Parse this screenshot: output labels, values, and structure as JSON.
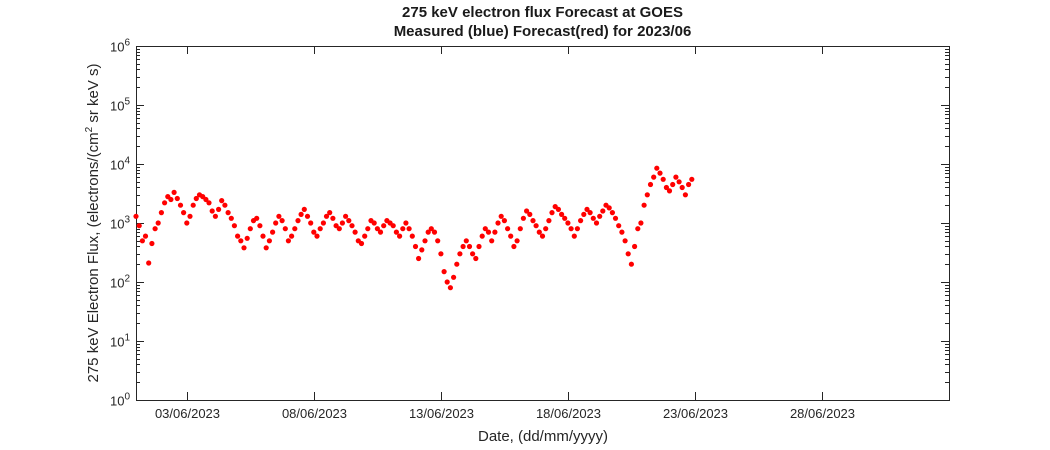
{
  "chart_data": {
    "type": "scatter",
    "title": "275 keV electron flux Forecast at GOES",
    "subtitle": "Measured (blue) Forecast(red) for 2023/06",
    "xlabel": "Date, (dd/mm/yyyy)",
    "ylabel": {
      "prefix": "275 keV Electron Flux, (electrons/(cm",
      "superscript": "2",
      "suffix": " sr keV s)"
    },
    "y_scale": "log",
    "ylim": [
      1,
      1000000
    ],
    "y_ticks": [
      {
        "value": 1,
        "base": "10",
        "exp": "0"
      },
      {
        "value": 10,
        "base": "10",
        "exp": "1"
      },
      {
        "value": 100,
        "base": "10",
        "exp": "2"
      },
      {
        "value": 1000,
        "base": "10",
        "exp": "3"
      },
      {
        "value": 10000,
        "base": "10",
        "exp": "4"
      },
      {
        "value": 100000,
        "base": "10",
        "exp": "5"
      },
      {
        "value": 1000000,
        "base": "10",
        "exp": "6"
      }
    ],
    "xlim": [
      "2023-06-01T00:00",
      "2023-07-03T00:00"
    ],
    "x_ticks": [
      {
        "date": "2023-06-03",
        "label": "03/06/2023"
      },
      {
        "date": "2023-06-08",
        "label": "08/06/2023"
      },
      {
        "date": "2023-06-13",
        "label": "13/06/2023"
      },
      {
        "date": "2023-06-18",
        "label": "18/06/2023"
      },
      {
        "date": "2023-06-23",
        "label": "23/06/2023"
      },
      {
        "date": "2023-06-28",
        "label": "28/06/2023"
      }
    ],
    "grid": false,
    "series": [
      {
        "color": "#ff0000",
        "points": [
          [
            "2023-06-01T00:00",
            1300
          ],
          [
            "2023-06-01T03:00",
            900
          ],
          [
            "2023-06-01T06:00",
            500
          ],
          [
            "2023-06-01T09:00",
            600
          ],
          [
            "2023-06-01T12:00",
            210
          ],
          [
            "2023-06-01T15:00",
            450
          ],
          [
            "2023-06-01T18:00",
            800
          ],
          [
            "2023-06-01T21:00",
            1000
          ],
          [
            "2023-06-02T00:00",
            1500
          ],
          [
            "2023-06-02T03:00",
            2200
          ],
          [
            "2023-06-02T06:00",
            2800
          ],
          [
            "2023-06-02T09:00",
            2500
          ],
          [
            "2023-06-02T12:00",
            3300
          ],
          [
            "2023-06-02T15:00",
            2600
          ],
          [
            "2023-06-02T18:00",
            2000
          ],
          [
            "2023-06-02T21:00",
            1500
          ],
          [
            "2023-06-03T00:00",
            1000
          ],
          [
            "2023-06-03T03:00",
            1300
          ],
          [
            "2023-06-03T06:00",
            2000
          ],
          [
            "2023-06-03T09:00",
            2600
          ],
          [
            "2023-06-03T12:00",
            3000
          ],
          [
            "2023-06-03T15:00",
            2800
          ],
          [
            "2023-06-03T18:00",
            2500
          ],
          [
            "2023-06-03T21:00",
            2200
          ],
          [
            "2023-06-04T00:00",
            1600
          ],
          [
            "2023-06-04T03:00",
            1300
          ],
          [
            "2023-06-04T06:00",
            1700
          ],
          [
            "2023-06-04T09:00",
            2400
          ],
          [
            "2023-06-04T12:00",
            2000
          ],
          [
            "2023-06-04T15:00",
            1500
          ],
          [
            "2023-06-04T18:00",
            1200
          ],
          [
            "2023-06-04T21:00",
            900
          ],
          [
            "2023-06-05T00:00",
            600
          ],
          [
            "2023-06-05T03:00",
            500
          ],
          [
            "2023-06-05T06:00",
            380
          ],
          [
            "2023-06-05T09:00",
            550
          ],
          [
            "2023-06-05T12:00",
            800
          ],
          [
            "2023-06-05T15:00",
            1100
          ],
          [
            "2023-06-05T18:00",
            1200
          ],
          [
            "2023-06-05T21:00",
            900
          ],
          [
            "2023-06-06T00:00",
            600
          ],
          [
            "2023-06-06T03:00",
            380
          ],
          [
            "2023-06-06T06:00",
            500
          ],
          [
            "2023-06-06T09:00",
            700
          ],
          [
            "2023-06-06T12:00",
            1000
          ],
          [
            "2023-06-06T15:00",
            1300
          ],
          [
            "2023-06-06T18:00",
            1100
          ],
          [
            "2023-06-06T21:00",
            800
          ],
          [
            "2023-06-07T00:00",
            500
          ],
          [
            "2023-06-07T03:00",
            600
          ],
          [
            "2023-06-07T06:00",
            800
          ],
          [
            "2023-06-07T09:00",
            1100
          ],
          [
            "2023-06-07T12:00",
            1400
          ],
          [
            "2023-06-07T15:00",
            1700
          ],
          [
            "2023-06-07T18:00",
            1300
          ],
          [
            "2023-06-07T21:00",
            1000
          ],
          [
            "2023-06-08T00:00",
            700
          ],
          [
            "2023-06-08T03:00",
            600
          ],
          [
            "2023-06-08T06:00",
            800
          ],
          [
            "2023-06-08T09:00",
            1000
          ],
          [
            "2023-06-08T12:00",
            1300
          ],
          [
            "2023-06-08T15:00",
            1500
          ],
          [
            "2023-06-08T18:00",
            1200
          ],
          [
            "2023-06-08T21:00",
            900
          ],
          [
            "2023-06-09T00:00",
            800
          ],
          [
            "2023-06-09T03:00",
            1000
          ],
          [
            "2023-06-09T06:00",
            1300
          ],
          [
            "2023-06-09T09:00",
            1100
          ],
          [
            "2023-06-09T12:00",
            900
          ],
          [
            "2023-06-09T15:00",
            700
          ],
          [
            "2023-06-09T18:00",
            500
          ],
          [
            "2023-06-09T21:00",
            450
          ],
          [
            "2023-06-10T00:00",
            600
          ],
          [
            "2023-06-10T03:00",
            800
          ],
          [
            "2023-06-10T06:00",
            1100
          ],
          [
            "2023-06-10T09:00",
            1000
          ],
          [
            "2023-06-10T12:00",
            800
          ],
          [
            "2023-06-10T15:00",
            700
          ],
          [
            "2023-06-10T18:00",
            900
          ],
          [
            "2023-06-10T21:00",
            1100
          ],
          [
            "2023-06-11T00:00",
            1000
          ],
          [
            "2023-06-11T03:00",
            900
          ],
          [
            "2023-06-11T06:00",
            700
          ],
          [
            "2023-06-11T09:00",
            600
          ],
          [
            "2023-06-11T12:00",
            800
          ],
          [
            "2023-06-11T15:00",
            1000
          ],
          [
            "2023-06-11T18:00",
            800
          ],
          [
            "2023-06-11T21:00",
            600
          ],
          [
            "2023-06-12T00:00",
            400
          ],
          [
            "2023-06-12T03:00",
            250
          ],
          [
            "2023-06-12T06:00",
            350
          ],
          [
            "2023-06-12T09:00",
            500
          ],
          [
            "2023-06-12T12:00",
            700
          ],
          [
            "2023-06-12T15:00",
            800
          ],
          [
            "2023-06-12T18:00",
            700
          ],
          [
            "2023-06-12T21:00",
            500
          ],
          [
            "2023-06-13T00:00",
            300
          ],
          [
            "2023-06-13T03:00",
            150
          ],
          [
            "2023-06-13T06:00",
            100
          ],
          [
            "2023-06-13T09:00",
            80
          ],
          [
            "2023-06-13T12:00",
            120
          ],
          [
            "2023-06-13T15:00",
            200
          ],
          [
            "2023-06-13T18:00",
            300
          ],
          [
            "2023-06-13T21:00",
            400
          ],
          [
            "2023-06-14T00:00",
            500
          ],
          [
            "2023-06-14T03:00",
            400
          ],
          [
            "2023-06-14T06:00",
            300
          ],
          [
            "2023-06-14T09:00",
            250
          ],
          [
            "2023-06-14T12:00",
            400
          ],
          [
            "2023-06-14T15:00",
            600
          ],
          [
            "2023-06-14T18:00",
            800
          ],
          [
            "2023-06-14T21:00",
            700
          ],
          [
            "2023-06-15T00:00",
            500
          ],
          [
            "2023-06-15T03:00",
            700
          ],
          [
            "2023-06-15T06:00",
            1000
          ],
          [
            "2023-06-15T09:00",
            1300
          ],
          [
            "2023-06-15T12:00",
            1100
          ],
          [
            "2023-06-15T15:00",
            800
          ],
          [
            "2023-06-15T18:00",
            600
          ],
          [
            "2023-06-15T21:00",
            400
          ],
          [
            "2023-06-16T00:00",
            500
          ],
          [
            "2023-06-16T03:00",
            800
          ],
          [
            "2023-06-16T06:00",
            1200
          ],
          [
            "2023-06-16T09:00",
            1600
          ],
          [
            "2023-06-16T12:00",
            1400
          ],
          [
            "2023-06-16T15:00",
            1100
          ],
          [
            "2023-06-16T18:00",
            900
          ],
          [
            "2023-06-16T21:00",
            700
          ],
          [
            "2023-06-17T00:00",
            600
          ],
          [
            "2023-06-17T03:00",
            800
          ],
          [
            "2023-06-17T06:00",
            1100
          ],
          [
            "2023-06-17T09:00",
            1500
          ],
          [
            "2023-06-17T12:00",
            1900
          ],
          [
            "2023-06-17T15:00",
            1700
          ],
          [
            "2023-06-17T18:00",
            1400
          ],
          [
            "2023-06-17T21:00",
            1200
          ],
          [
            "2023-06-18T00:00",
            1000
          ],
          [
            "2023-06-18T03:00",
            800
          ],
          [
            "2023-06-18T06:00",
            600
          ],
          [
            "2023-06-18T09:00",
            800
          ],
          [
            "2023-06-18T12:00",
            1100
          ],
          [
            "2023-06-18T15:00",
            1400
          ],
          [
            "2023-06-18T18:00",
            1700
          ],
          [
            "2023-06-18T21:00",
            1500
          ],
          [
            "2023-06-19T00:00",
            1200
          ],
          [
            "2023-06-19T03:00",
            1000
          ],
          [
            "2023-06-19T06:00",
            1300
          ],
          [
            "2023-06-19T09:00",
            1600
          ],
          [
            "2023-06-19T12:00",
            2000
          ],
          [
            "2023-06-19T15:00",
            1800
          ],
          [
            "2023-06-19T18:00",
            1500
          ],
          [
            "2023-06-19T21:00",
            1200
          ],
          [
            "2023-06-20T00:00",
            900
          ],
          [
            "2023-06-20T03:00",
            700
          ],
          [
            "2023-06-20T06:00",
            500
          ],
          [
            "2023-06-20T09:00",
            300
          ],
          [
            "2023-06-20T12:00",
            200
          ],
          [
            "2023-06-20T15:00",
            400
          ],
          [
            "2023-06-20T18:00",
            800
          ],
          [
            "2023-06-20T21:00",
            1000
          ],
          [
            "2023-06-21T00:00",
            2000
          ],
          [
            "2023-06-21T03:00",
            3000
          ],
          [
            "2023-06-21T06:00",
            4500
          ],
          [
            "2023-06-21T09:00",
            6000
          ],
          [
            "2023-06-21T12:00",
            8500
          ],
          [
            "2023-06-21T15:00",
            7000
          ],
          [
            "2023-06-21T18:00",
            5500
          ],
          [
            "2023-06-21T21:00",
            4000
          ],
          [
            "2023-06-22T00:00",
            3500
          ],
          [
            "2023-06-22T03:00",
            4500
          ],
          [
            "2023-06-22T06:00",
            6000
          ],
          [
            "2023-06-22T09:00",
            5000
          ],
          [
            "2023-06-22T12:00",
            4000
          ],
          [
            "2023-06-22T15:00",
            3000
          ],
          [
            "2023-06-22T18:00",
            4500
          ],
          [
            "2023-06-22T21:00",
            5500
          ]
        ]
      }
    ]
  }
}
